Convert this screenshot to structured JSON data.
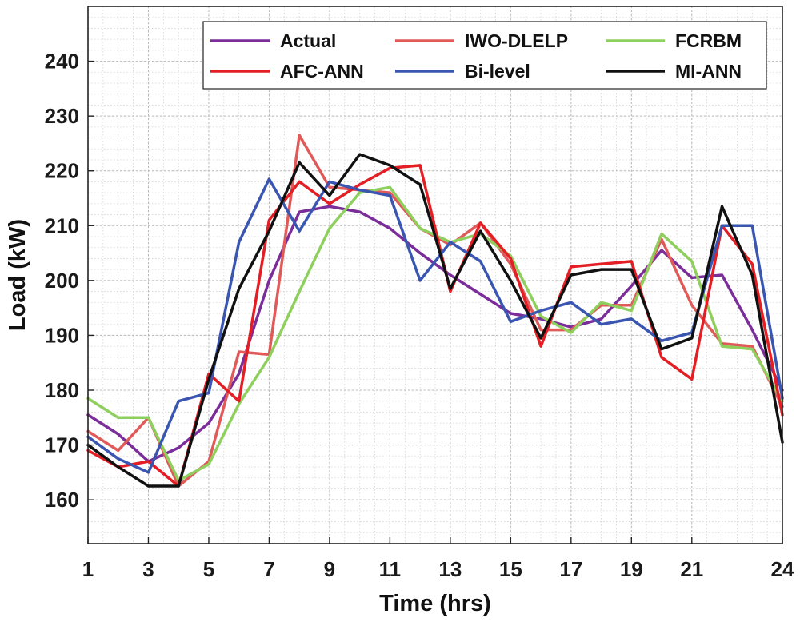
{
  "chart_data": {
    "type": "line",
    "xlabel": "Time (hrs)",
    "ylabel": "Load (kW)",
    "xlim": [
      1,
      24
    ],
    "ylim": [
      152,
      250
    ],
    "grid": "major and minor, dotted",
    "legend_position": "top-right",
    "x_ticks": [
      "1",
      "3",
      "5",
      "7",
      "9",
      "11",
      "13",
      "15",
      "17",
      "19",
      "21",
      "24"
    ],
    "y_ticks": [
      "160",
      "170",
      "180",
      "190",
      "200",
      "210",
      "220",
      "230",
      "240"
    ],
    "x": [
      1,
      2,
      3,
      4,
      5,
      6,
      7,
      8,
      9,
      10,
      11,
      12,
      13,
      14,
      15,
      16,
      17,
      18,
      19,
      20,
      21,
      22,
      23,
      24
    ],
    "series": [
      {
        "name": "Actual",
        "color": "#7b2d9a",
        "values": [
          175.5,
          172,
          167,
          169.5,
          174,
          183,
          200,
          212.5,
          213.5,
          212.5,
          209.5,
          205,
          201,
          197.5,
          194,
          193,
          191.5,
          193,
          199,
          205.5,
          200.5,
          201,
          191,
          180
        ]
      },
      {
        "name": "IWO-DLELP",
        "color": "#e05a5a",
        "values": [
          172.5,
          169,
          175,
          162.5,
          167,
          187,
          186.5,
          226.5,
          217,
          216.5,
          216,
          209.5,
          206.5,
          210.5,
          203,
          191,
          191,
          195.5,
          195.5,
          207.5,
          195.5,
          188.5,
          188,
          177
        ]
      },
      {
        "name": "FCRBM",
        "color": "#8fcf5e",
        "values": [
          178.5,
          175,
          175,
          163.5,
          166.5,
          177.5,
          186,
          198,
          209.5,
          216,
          217,
          209.5,
          207,
          208.5,
          204.5,
          193.5,
          190.5,
          196,
          194.5,
          208.5,
          203.5,
          188,
          187.5,
          178
        ]
      },
      {
        "name": "AFC-ANN",
        "color": "#e31e24",
        "values": [
          169,
          166,
          167,
          162.5,
          183,
          178,
          211,
          218,
          214,
          217.5,
          220.5,
          221,
          198,
          210.5,
          204,
          188,
          202.5,
          203,
          203.5,
          186,
          182,
          210,
          203,
          175.5
        ]
      },
      {
        "name": "Bi-level",
        "color": "#3a56b0",
        "values": [
          171.5,
          167.5,
          165,
          178,
          179.5,
          207,
          218.5,
          209,
          218,
          216.5,
          215.5,
          200,
          207,
          203.5,
          192.5,
          194.5,
          196,
          192,
          193,
          189,
          190.5,
          210,
          210,
          178.5
        ]
      },
      {
        "name": "MI-ANN",
        "color": "#111111",
        "values": [
          170,
          166,
          162.5,
          162.5,
          182,
          198.5,
          209,
          221.5,
          215.5,
          223,
          221,
          217.5,
          198.5,
          209,
          200,
          189.5,
          201,
          202,
          202,
          187.5,
          189.5,
          213.5,
          201,
          170.5
        ]
      }
    ]
  }
}
